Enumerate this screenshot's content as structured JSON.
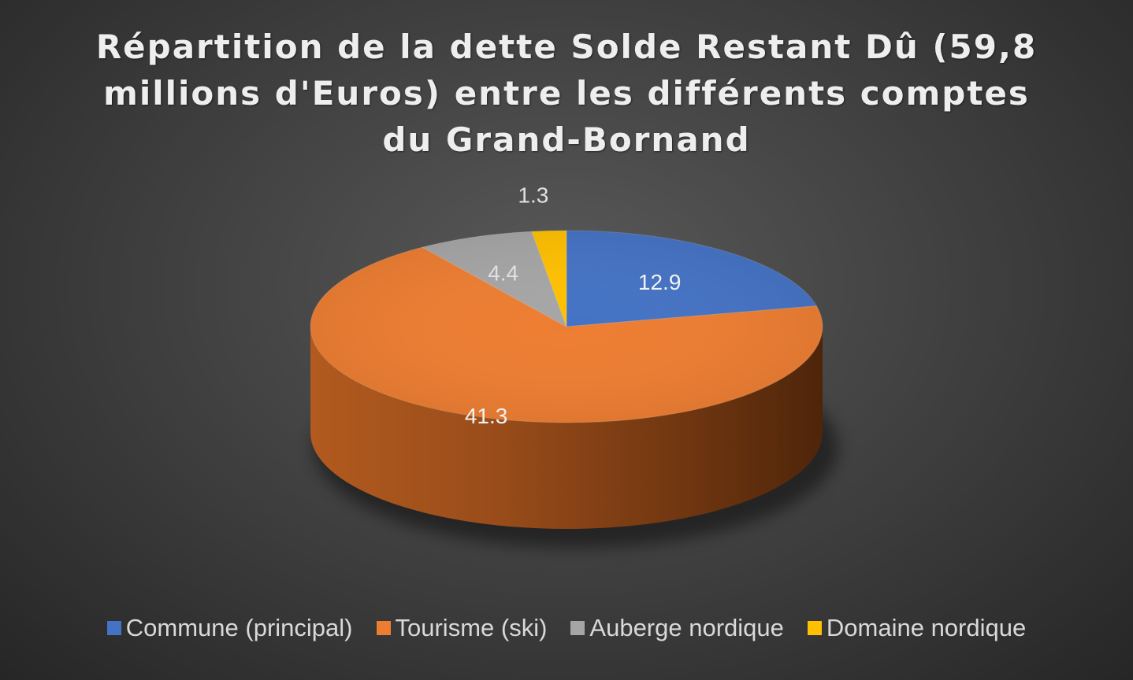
{
  "chart_data": {
    "type": "pie",
    "title_lines": [
      "Répartition de la dette Solde Restant Dû (59,8",
      "millions d'Euros) entre les différents comptes",
      "du Grand-Bornand"
    ],
    "categories": [
      "Commune (principal)",
      "Tourisme (ski)",
      "Auberge nordique",
      "Domaine nordique"
    ],
    "values": [
      12.9,
      41.3,
      4.4,
      1.3
    ],
    "data_labels": [
      "12.9",
      "41.3",
      "4.4",
      "1.3"
    ],
    "colors": [
      "#4472c4",
      "#ed7d31",
      "#a5a5a5",
      "#ffc000"
    ],
    "style": "3d",
    "legend_position": "bottom"
  }
}
